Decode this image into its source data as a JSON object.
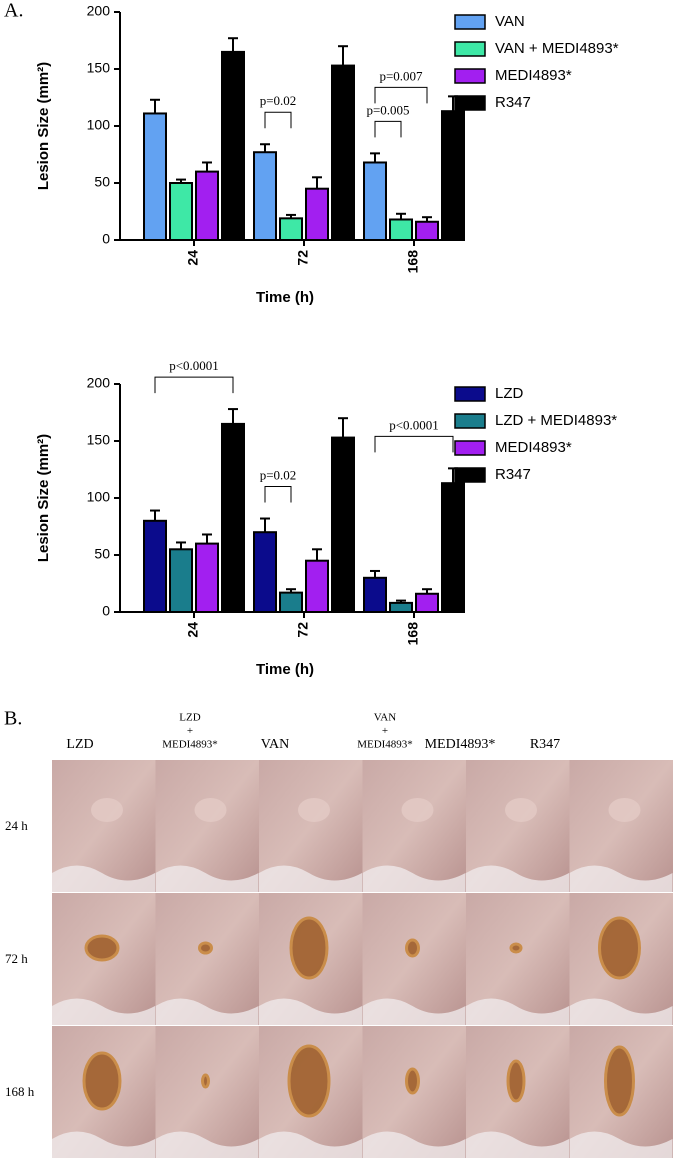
{
  "panel_labels": [
    "A.",
    "B."
  ],
  "chart_data": [
    {
      "type": "bar",
      "xlabel": "Time (h)",
      "ylabel": "Lesion Size (mm²)",
      "categories": [
        "24",
        "72",
        "168"
      ],
      "ylim": [
        0,
        200
      ],
      "yticks": [
        0,
        50,
        100,
        150,
        200
      ],
      "series": [
        {
          "name": "VAN",
          "color": "#62a2f2",
          "values": [
            111,
            77,
            68
          ],
          "errors": [
            12,
            7,
            8
          ]
        },
        {
          "name": "VAN + MEDI4893*",
          "color": "#3ee8a6",
          "values": [
            50,
            19,
            18
          ],
          "errors": [
            3,
            3,
            5
          ]
        },
        {
          "name": "MEDI4893*",
          "color": "#a21ff0",
          "values": [
            60,
            45,
            16
          ],
          "errors": [
            8,
            10,
            4
          ]
        },
        {
          "name": "R347",
          "color": "#000000",
          "values": [
            165,
            153,
            113
          ],
          "errors": [
            12,
            17,
            13
          ]
        }
      ],
      "annotations": [
        {
          "label": "p=0.02",
          "category": "72",
          "between": [
            "VAN",
            "VAN + MEDI4893*"
          ]
        },
        {
          "label": "p=0.005",
          "category": "168",
          "between": [
            "VAN",
            "VAN + MEDI4893*"
          ]
        },
        {
          "label": "p=0.007",
          "category": "168",
          "between": [
            "VAN",
            "MEDI4893*"
          ]
        }
      ]
    },
    {
      "type": "bar",
      "xlabel": "Time (h)",
      "ylabel": "Lesion Size (mm²)",
      "categories": [
        "24",
        "72",
        "168"
      ],
      "ylim": [
        0,
        200
      ],
      "yticks": [
        0,
        50,
        100,
        150,
        200
      ],
      "series": [
        {
          "name": "LZD",
          "color": "#0b0b8c",
          "values": [
            80,
            70,
            30
          ],
          "errors": [
            9,
            12,
            6
          ]
        },
        {
          "name": "LZD + MEDI4893*",
          "color": "#1a7d8c",
          "values": [
            55,
            17,
            8
          ],
          "errors": [
            6,
            3,
            2
          ]
        },
        {
          "name": "MEDI4893*",
          "color": "#a21ff0",
          "values": [
            60,
            45,
            16
          ],
          "errors": [
            8,
            10,
            4
          ]
        },
        {
          "name": "R347",
          "color": "#000000",
          "values": [
            165,
            153,
            113
          ],
          "errors": [
            13,
            17,
            13
          ]
        }
      ],
      "annotations": [
        {
          "label": "p<0.0001",
          "category": "24",
          "between": [
            "LZD",
            "R347"
          ]
        },
        {
          "label": "p=0.02",
          "category": "72",
          "between": [
            "LZD",
            "LZD + MEDI4893*"
          ]
        },
        {
          "label": "p<0.0001",
          "category": "168",
          "between": [
            "LZD",
            "R347"
          ]
        }
      ]
    }
  ],
  "photo_grid": {
    "columns": [
      [
        "LZD"
      ],
      [
        "LZD",
        "+",
        "MEDI4893*"
      ],
      [
        "VAN"
      ],
      [
        "VAN",
        "+",
        "MEDI4893*"
      ],
      [
        "MEDI4893*"
      ],
      [
        "R347"
      ]
    ],
    "rows": [
      "24 h",
      "72 h",
      "168 h"
    ]
  }
}
